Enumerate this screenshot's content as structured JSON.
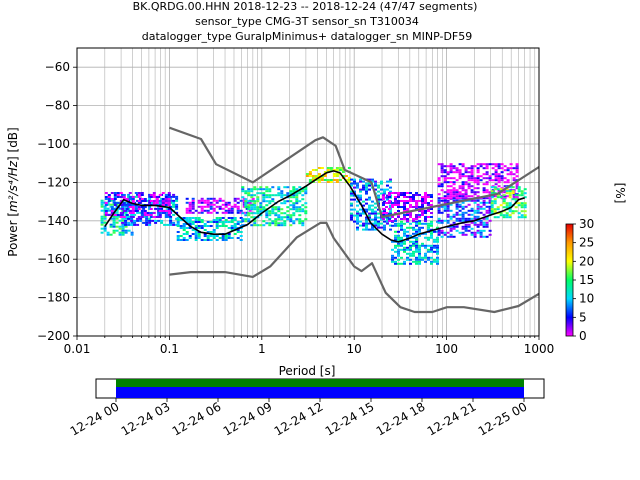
{
  "chart_data": {
    "type": "heatmap",
    "title_lines": [
      "BK.QRDG.00.HHN   2018-12-23 -- 2018-12-24  (47/47 segments)",
      "sensor_type CMG-3T sensor_sn T310034",
      "datalogger_type GuralpMinimus+ datalogger_sn MINP-DF59"
    ],
    "xlabel": "Period [s]",
    "ylabel_prefix": "Power [",
    "ylabel_unit": "m²/s⁴/Hz",
    "ylabel_suffix": "] [dB]",
    "x_scale": "log",
    "xlim": [
      0.01,
      1000
    ],
    "ylim": [
      -200,
      -50
    ],
    "x_tick_labels": [
      "0.01",
      "0.1",
      "1",
      "10",
      "100",
      "1000"
    ],
    "y_ticks": [
      -60,
      -80,
      -100,
      -120,
      -140,
      -160,
      -180,
      -200
    ],
    "grid": true,
    "colorbar": {
      "label": "[%]",
      "min": 0,
      "max": 30,
      "ticks": [
        0,
        5,
        10,
        15,
        20,
        25,
        30
      ],
      "colors": [
        "#ff00ff",
        "#0000ff",
        "#00d9ff",
        "#00ff66",
        "#ffff00",
        "#ff9900",
        "#e60000"
      ]
    },
    "noise_model_color": "#666666",
    "high_noise_model": {
      "period": [
        0.1,
        0.22,
        0.32,
        0.8,
        3.8,
        4.6,
        6.3,
        7.9,
        15.4,
        20,
        354.8,
        1000
      ],
      "power": [
        -91.5,
        -97.4,
        -110.5,
        -120,
        -98,
        -96.5,
        -101,
        -113.5,
        -120,
        -138,
        -126,
        -112
      ]
    },
    "low_noise_model": {
      "period": [
        0.1,
        0.17,
        0.4,
        0.8,
        1.24,
        2.4,
        4.3,
        5,
        6,
        10,
        12,
        15.6,
        21.9,
        31.6,
        45,
        70,
        101,
        154,
        328,
        600,
        1000
      ],
      "power": [
        -168,
        -166.7,
        -166.7,
        -169.2,
        -163.7,
        -148.6,
        -141.1,
        -141.1,
        -149,
        -163.8,
        -166.2,
        -162.1,
        -177.5,
        -185,
        -187.5,
        -187.5,
        -185,
        -185,
        -187.5,
        -184.4,
        -178
      ]
    },
    "mode_line": {
      "period": [
        0.02,
        0.025,
        0.032,
        0.04,
        0.05,
        0.07,
        0.1,
        0.13,
        0.17,
        0.22,
        0.3,
        0.4,
        0.5,
        0.7,
        1,
        1.5,
        2,
        3,
        4,
        5,
        6,
        7,
        9,
        12,
        15,
        20,
        25,
        30,
        40,
        50,
        70,
        100,
        150,
        200,
        300,
        400,
        500,
        600,
        700
      ],
      "power": [
        -143,
        -136,
        -129,
        -131,
        -132,
        -132,
        -133,
        -138,
        -143,
        -146,
        -147,
        -147,
        -145,
        -142,
        -136,
        -130,
        -127,
        -122,
        -118,
        -115,
        -114,
        -115,
        -122,
        -132,
        -141,
        -147,
        -150,
        -151,
        -149,
        -147,
        -145,
        -143,
        -141,
        -140,
        -137,
        -135,
        -133,
        -129,
        -128
      ]
    },
    "density_bands": [
      {
        "period": [
          0.018,
          0.04
        ],
        "power": [
          -147,
          -129
        ],
        "level": 12
      },
      {
        "period": [
          0.03,
          0.12
        ],
        "power": [
          -142,
          -126
        ],
        "level": 8
      },
      {
        "period": [
          0.02,
          0.1
        ],
        "power": [
          -138,
          -125
        ],
        "level": 3
      },
      {
        "period": [
          0.12,
          0.6
        ],
        "power": [
          -150,
          -138
        ],
        "level": 10
      },
      {
        "period": [
          0.15,
          0.8
        ],
        "power": [
          -136,
          -128
        ],
        "level": 2
      },
      {
        "period": [
          0.6,
          3
        ],
        "power": [
          -142,
          -122
        ],
        "level": 12
      },
      {
        "period": [
          3,
          9
        ],
        "power": [
          -120,
          -112
        ],
        "level": 20
      },
      {
        "period": [
          9,
          25
        ],
        "power": [
          -145,
          -118
        ],
        "level": 8
      },
      {
        "period": [
          25,
          80
        ],
        "power": [
          -162,
          -140
        ],
        "level": 10
      },
      {
        "period": [
          20,
          70
        ],
        "power": [
          -140,
          -125
        ],
        "level": 2
      },
      {
        "period": [
          80,
          300
        ],
        "power": [
          -148,
          -128
        ],
        "level": 6
      },
      {
        "period": [
          80,
          600
        ],
        "power": [
          -128,
          -110
        ],
        "level": 1
      },
      {
        "period": [
          300,
          700
        ],
        "power": [
          -138,
          -122
        ],
        "level": 15
      }
    ],
    "timeline": {
      "tick_labels": [
        "12-24 00",
        "12-24 03",
        "12-24 06",
        "12-24 09",
        "12-24 12",
        "12-24 15",
        "12-24 18",
        "12-24 21",
        "12-25 00"
      ],
      "coverage_colors": [
        "#008000",
        "#0000ff"
      ]
    }
  }
}
